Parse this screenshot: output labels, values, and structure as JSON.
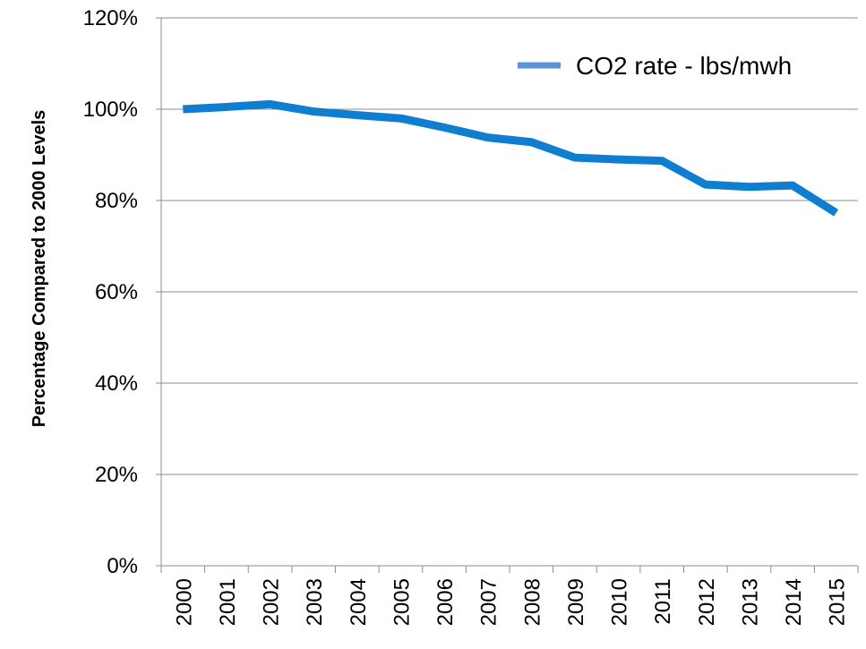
{
  "chart_data": {
    "type": "line",
    "title": "",
    "xlabel": "",
    "ylabel": "Percentage Compared to 2000 Levels",
    "categories": [
      "2000",
      "2001",
      "2002",
      "2003",
      "2004",
      "2005",
      "2006",
      "2007",
      "2008",
      "2009",
      "2010",
      "2011",
      "2012",
      "2013",
      "2014",
      "2015"
    ],
    "series": [
      {
        "name": "CO2 rate - lbs/mwh",
        "values": [
          100.0,
          100.5,
          101.1,
          99.5,
          98.7,
          98.0,
          96.0,
          93.8,
          92.8,
          89.4,
          89.0,
          88.7,
          83.5,
          83.0,
          83.3,
          77.3
        ],
        "color": "#0F7DD0"
      }
    ],
    "ylim": [
      0,
      120
    ],
    "yticks": [
      0,
      20,
      40,
      60,
      80,
      100,
      120
    ],
    "ytick_labels": [
      "0%",
      "20%",
      "40%",
      "60%",
      "80%",
      "100%",
      "120%"
    ],
    "grid": true,
    "legend_position": "top-right",
    "legend_swatch_color": "#5B92D8",
    "gridline_color": "#8C8C8C"
  }
}
